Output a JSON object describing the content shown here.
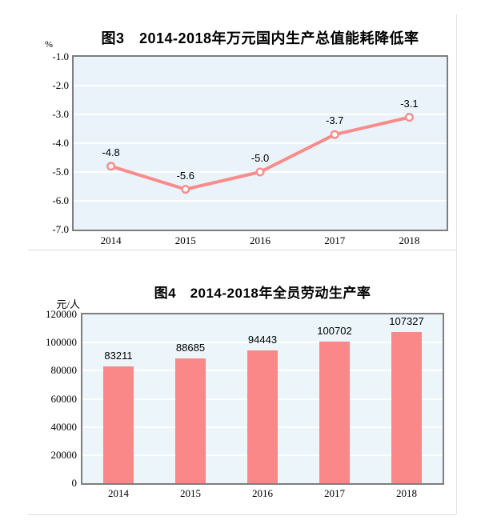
{
  "page": {
    "background": "#ffffff"
  },
  "colors": {
    "series_salmon": "#f98b8b",
    "bar_salmon": "#fa8888",
    "plot_background_blue": "#eaf3f9",
    "plot_border_gray": "#7e7e7e",
    "gridline_white": "#ffffff",
    "page_divider_gray": "#e0e0e0",
    "text_black": "#000000"
  },
  "chart_data": [
    {
      "type": "line",
      "figure_label": "图3",
      "title": "图3　2014-2018年万元国内生产总值能耗降低率",
      "unit": "%",
      "categories": [
        "2014",
        "2015",
        "2016",
        "2017",
        "2018"
      ],
      "values": [
        -4.8,
        -5.6,
        -5.0,
        -3.7,
        -3.1
      ],
      "point_labels": [
        "-4.8",
        "-5.6",
        "-5.0",
        "-3.7",
        "-3.1"
      ],
      "y_ticks": [
        -1.0,
        -2.0,
        -3.0,
        -4.0,
        -5.0,
        -6.0,
        -7.0
      ],
      "y_tick_labels": [
        "-1.0",
        "-2.0",
        "-3.0",
        "-4.0",
        "-5.0",
        "-6.0",
        "-7.0"
      ],
      "ylim": [
        -7.0,
        -1.0
      ],
      "grid": true,
      "legend": "none",
      "marker": "circle-open",
      "line_color": "#f98b8b",
      "plot_bg": "#eaf3f9"
    },
    {
      "type": "bar",
      "figure_label": "图4",
      "title": "图4　2014-2018年全员劳动生产率",
      "unit": "元/人",
      "categories": [
        "2014",
        "2015",
        "2016",
        "2017",
        "2018"
      ],
      "values": [
        83211,
        88685,
        94443,
        100702,
        107327
      ],
      "bar_labels": [
        "83211",
        "88685",
        "94443",
        "100702",
        "107327"
      ],
      "y_ticks": [
        120000,
        100000,
        80000,
        60000,
        40000,
        20000,
        0
      ],
      "y_tick_labels": [
        "120000",
        "100000",
        "80000",
        "60000",
        "40000",
        "20000",
        "0"
      ],
      "ylim": [
        0,
        120000
      ],
      "grid": true,
      "legend": "none",
      "bar_color": "#fa8888",
      "plot_bg": "#ecf5fa"
    }
  ]
}
